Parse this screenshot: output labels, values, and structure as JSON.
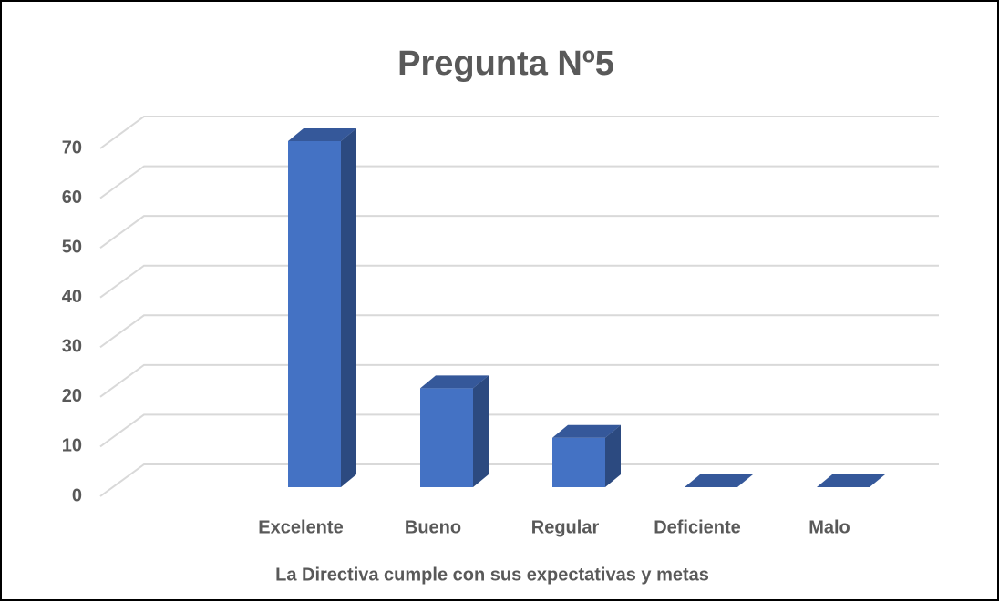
{
  "chart_data": {
    "type": "bar3d",
    "title": "Pregunta Nº5",
    "x_label": "La Directiva cumple con sus expectativas y metas",
    "categories": [
      "Excelente",
      "Bueno",
      "Regular",
      "Deficiente",
      "Malo"
    ],
    "values": [
      70,
      20,
      10,
      0,
      0
    ],
    "color": "#4472c4",
    "ylim": [
      0,
      70
    ],
    "yticks": [
      0,
      10,
      20,
      30,
      40,
      50,
      60,
      70
    ],
    "grid": true
  }
}
